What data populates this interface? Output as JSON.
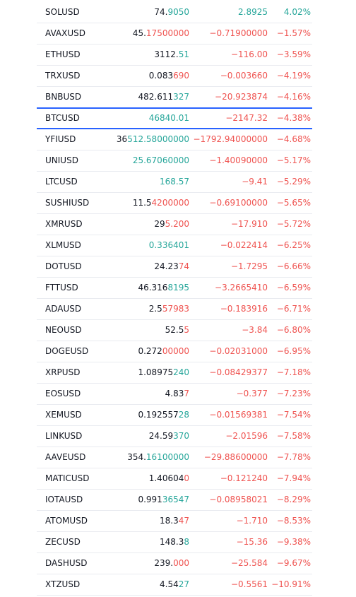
{
  "colors": {
    "up": "#26a69a",
    "down": "#ef5350"
  },
  "highlight_row": 5,
  "rows": [
    {
      "symbol": "SOLUSD",
      "price_head": "74.",
      "price_tail": "9050",
      "tail_trend": "up",
      "change": "2.8925",
      "change_pct": "4.02%",
      "trend": "up"
    },
    {
      "symbol": "AVAXUSD",
      "price_head": "45.",
      "price_tail": "17500000",
      "tail_trend": "down",
      "change": "−0.71900000",
      "change_pct": "−1.57%",
      "trend": "down"
    },
    {
      "symbol": "ETHUSD",
      "price_head": "3112.",
      "price_tail": "51",
      "tail_trend": "up",
      "change": "−116.00",
      "change_pct": "−3.59%",
      "trend": "down"
    },
    {
      "symbol": "TRXUSD",
      "price_head": "0.083",
      "price_tail": "690",
      "tail_trend": "down",
      "change": "−0.003660",
      "change_pct": "−4.19%",
      "trend": "down"
    },
    {
      "symbol": "BNBUSD",
      "price_head": "482.611",
      "price_tail": "327",
      "tail_trend": "up",
      "change": "−20.923874",
      "change_pct": "−4.16%",
      "trend": "down"
    },
    {
      "symbol": "BTCUSD",
      "price_head": "",
      "price_tail": "46840.01",
      "tail_trend": "up",
      "change": "−2147.32",
      "change_pct": "−4.38%",
      "trend": "down"
    },
    {
      "symbol": "YFIUSD",
      "price_head": "36",
      "price_tail": "512.58000000",
      "tail_trend": "up",
      "change": "−1792.94000000",
      "change_pct": "−4.68%",
      "trend": "down"
    },
    {
      "symbol": "UNIUSD",
      "price_head": "",
      "price_tail": "25.67060000",
      "tail_trend": "up",
      "change": "−1.40090000",
      "change_pct": "−5.17%",
      "trend": "down"
    },
    {
      "symbol": "LTCUSD",
      "price_head": "",
      "price_tail": "168.57",
      "tail_trend": "up",
      "change": "−9.41",
      "change_pct": "−5.29%",
      "trend": "down"
    },
    {
      "symbol": "SUSHIUSD",
      "price_head": "11.5",
      "price_tail": "4200000",
      "tail_trend": "down",
      "change": "−0.69100000",
      "change_pct": "−5.65%",
      "trend": "down"
    },
    {
      "symbol": "XMRUSD",
      "price_head": "29",
      "price_tail": "5.200",
      "tail_trend": "down",
      "change": "−17.910",
      "change_pct": "−5.72%",
      "trend": "down"
    },
    {
      "symbol": "XLMUSD",
      "price_head": "",
      "price_tail": "0.336401",
      "tail_trend": "up",
      "change": "−0.022414",
      "change_pct": "−6.25%",
      "trend": "down"
    },
    {
      "symbol": "DOTUSD",
      "price_head": "24.23",
      "price_tail": "74",
      "tail_trend": "down",
      "change": "−1.7295",
      "change_pct": "−6.66%",
      "trend": "down"
    },
    {
      "symbol": "FTTUSD",
      "price_head": "46.316",
      "price_tail": "8195",
      "tail_trend": "up",
      "change": "−3.2665410",
      "change_pct": "−6.59%",
      "trend": "down"
    },
    {
      "symbol": "ADAUSD",
      "price_head": "2.5",
      "price_tail": "57983",
      "tail_trend": "down",
      "change": "−0.183916",
      "change_pct": "−6.71%",
      "trend": "down"
    },
    {
      "symbol": "NEOUSD",
      "price_head": "52.5",
      "price_tail": "5",
      "tail_trend": "down",
      "change": "−3.84",
      "change_pct": "−6.80%",
      "trend": "down"
    },
    {
      "symbol": "DOGEUSD",
      "price_head": "0.272",
      "price_tail": "00000",
      "tail_trend": "down",
      "change": "−0.02031000",
      "change_pct": "−6.95%",
      "trend": "down"
    },
    {
      "symbol": "XRPUSD",
      "price_head": "1.08975",
      "price_tail": "240",
      "tail_trend": "up",
      "change": "−0.08429377",
      "change_pct": "−7.18%",
      "trend": "down"
    },
    {
      "symbol": "EOSUSD",
      "price_head": "4.83",
      "price_tail": "7",
      "tail_trend": "down",
      "change": "−0.377",
      "change_pct": "−7.23%",
      "trend": "down"
    },
    {
      "symbol": "XEMUSD",
      "price_head": "0.192557",
      "price_tail": "28",
      "tail_trend": "up",
      "change": "−0.01569381",
      "change_pct": "−7.54%",
      "trend": "down"
    },
    {
      "symbol": "LINKUSD",
      "price_head": "24.59",
      "price_tail": "370",
      "tail_trend": "up",
      "change": "−2.01596",
      "change_pct": "−7.58%",
      "trend": "down"
    },
    {
      "symbol": "AAVEUSD",
      "price_head": "354.",
      "price_tail": "16100000",
      "tail_trend": "up",
      "change": "−29.88600000",
      "change_pct": "−7.78%",
      "trend": "down"
    },
    {
      "symbol": "MATICUSD",
      "price_head": "1.40604",
      "price_tail": "0",
      "tail_trend": "down",
      "change": "−0.121240",
      "change_pct": "−7.94%",
      "trend": "down"
    },
    {
      "symbol": "IOTAUSD",
      "price_head": "0.991",
      "price_tail": "36547",
      "tail_trend": "up",
      "change": "−0.08958021",
      "change_pct": "−8.29%",
      "trend": "down"
    },
    {
      "symbol": "ATOMUSD",
      "price_head": "18.3",
      "price_tail": "47",
      "tail_trend": "down",
      "change": "−1.710",
      "change_pct": "−8.53%",
      "trend": "down"
    },
    {
      "symbol": "ZECUSD",
      "price_head": "148.3",
      "price_tail": "8",
      "tail_trend": "up",
      "change": "−15.36",
      "change_pct": "−9.38%",
      "trend": "down"
    },
    {
      "symbol": "DASHUSD",
      "price_head": "239.",
      "price_tail": "000",
      "tail_trend": "down",
      "change": "−25.584",
      "change_pct": "−9.67%",
      "trend": "down"
    },
    {
      "symbol": "XTZUSD",
      "price_head": "4.54",
      "price_tail": "27",
      "tail_trend": "up",
      "change": "−0.5561",
      "change_pct": "−10.91%",
      "trend": "down"
    }
  ]
}
